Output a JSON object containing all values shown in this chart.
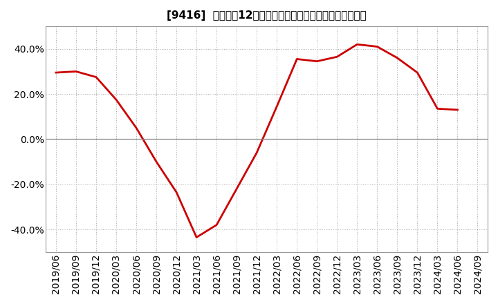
{
  "title": "[9416]  売上高の12か月移動合計の対前年同期増減率の推移",
  "line_color": "#cc0000",
  "background_color": "#ffffff",
  "plot_bg_color": "#ffffff",
  "grid_color": "#aaaaaa",
  "zero_line_color": "#888888",
  "dates": [
    "2019/06",
    "2019/09",
    "2019/12",
    "2020/03",
    "2020/06",
    "2020/09",
    "2020/12",
    "2021/03",
    "2021/06",
    "2021/09",
    "2021/12",
    "2022/03",
    "2022/06",
    "2022/09",
    "2022/12",
    "2023/03",
    "2023/06",
    "2023/09",
    "2023/12",
    "2024/03",
    "2024/06"
  ],
  "values": [
    0.295,
    0.3,
    0.275,
    0.175,
    0.05,
    -0.1,
    -0.235,
    -0.435,
    -0.38,
    -0.22,
    -0.06,
    0.145,
    0.355,
    0.345,
    0.365,
    0.42,
    0.41,
    0.36,
    0.295,
    0.135,
    0.13
  ],
  "xtick_labels": [
    "2019/06",
    "2019/09",
    "2019/12",
    "2020/03",
    "2020/06",
    "2020/09",
    "2020/12",
    "2021/03",
    "2021/06",
    "2021/09",
    "2021/12",
    "2022/03",
    "2022/06",
    "2022/09",
    "2022/12",
    "2023/03",
    "2023/06",
    "2023/09",
    "2023/12",
    "2024/03",
    "2024/06",
    "2024/09"
  ],
  "ytick_values": [
    -0.4,
    -0.2,
    0.0,
    0.2,
    0.4
  ],
  "ytick_labels": [
    "-40.0%",
    "-20.0%",
    "0.0%",
    "20.0%",
    "40.0%"
  ],
  "ylim": [
    -0.5,
    0.5
  ],
  "line_width": 2.0,
  "title_fontsize": 11,
  "tick_fontsize": 8.5
}
